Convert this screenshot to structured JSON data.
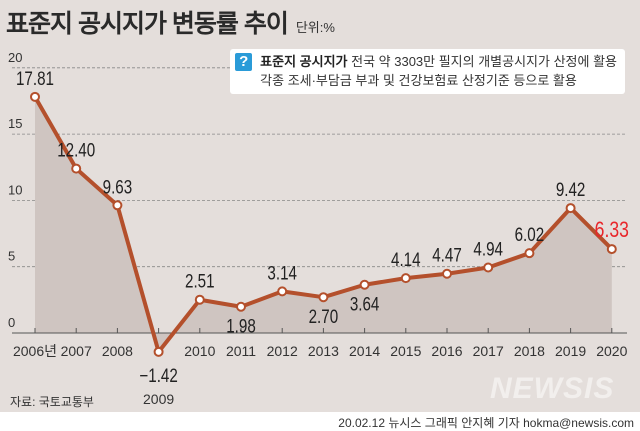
{
  "title": "표준지 공시지가 변동률 추이",
  "unit": "단위:%",
  "note": {
    "term": "표준지 공시지가",
    "line1": "전국 약 3303만 필지의 개별공시지가 산정에 활용",
    "line2": "각종 조세·부담금 부과 및 건강보험료 산정기준 등으로 활용"
  },
  "source": "자료: 국토교통부",
  "watermark": "NEWSIS",
  "credit": "20.02.12 뉴시스 그래픽 안지혜 기자 hokma@newsis.com",
  "colors": {
    "line": "#b4502c",
    "fill": "#cfc5c1",
    "highlight": "#e8262a"
  },
  "chart_data": {
    "type": "line",
    "title": "표준지 공시지가 변동률 추이",
    "ylabel": "단위:%",
    "categories": [
      "2006년",
      "2007",
      "2008",
      "2009",
      "2010",
      "2011",
      "2012",
      "2013",
      "2014",
      "2015",
      "2016",
      "2017",
      "2018",
      "2019",
      "2020"
    ],
    "values": [
      17.81,
      12.4,
      9.63,
      -1.42,
      2.51,
      1.98,
      3.14,
      2.7,
      3.64,
      4.14,
      4.47,
      4.94,
      6.02,
      9.42,
      6.33
    ],
    "labels": [
      "17.81",
      "12.40",
      "9.63",
      "−1.42",
      "2.51",
      "1.98",
      "3.14",
      "2.70",
      "3.64",
      "4.14",
      "4.47",
      "4.94",
      "6.02",
      "9.42",
      "6.33"
    ],
    "yticks": [
      "0",
      "5",
      "10",
      "15",
      "20"
    ],
    "ylim": [
      -2,
      20
    ],
    "grid": true
  }
}
